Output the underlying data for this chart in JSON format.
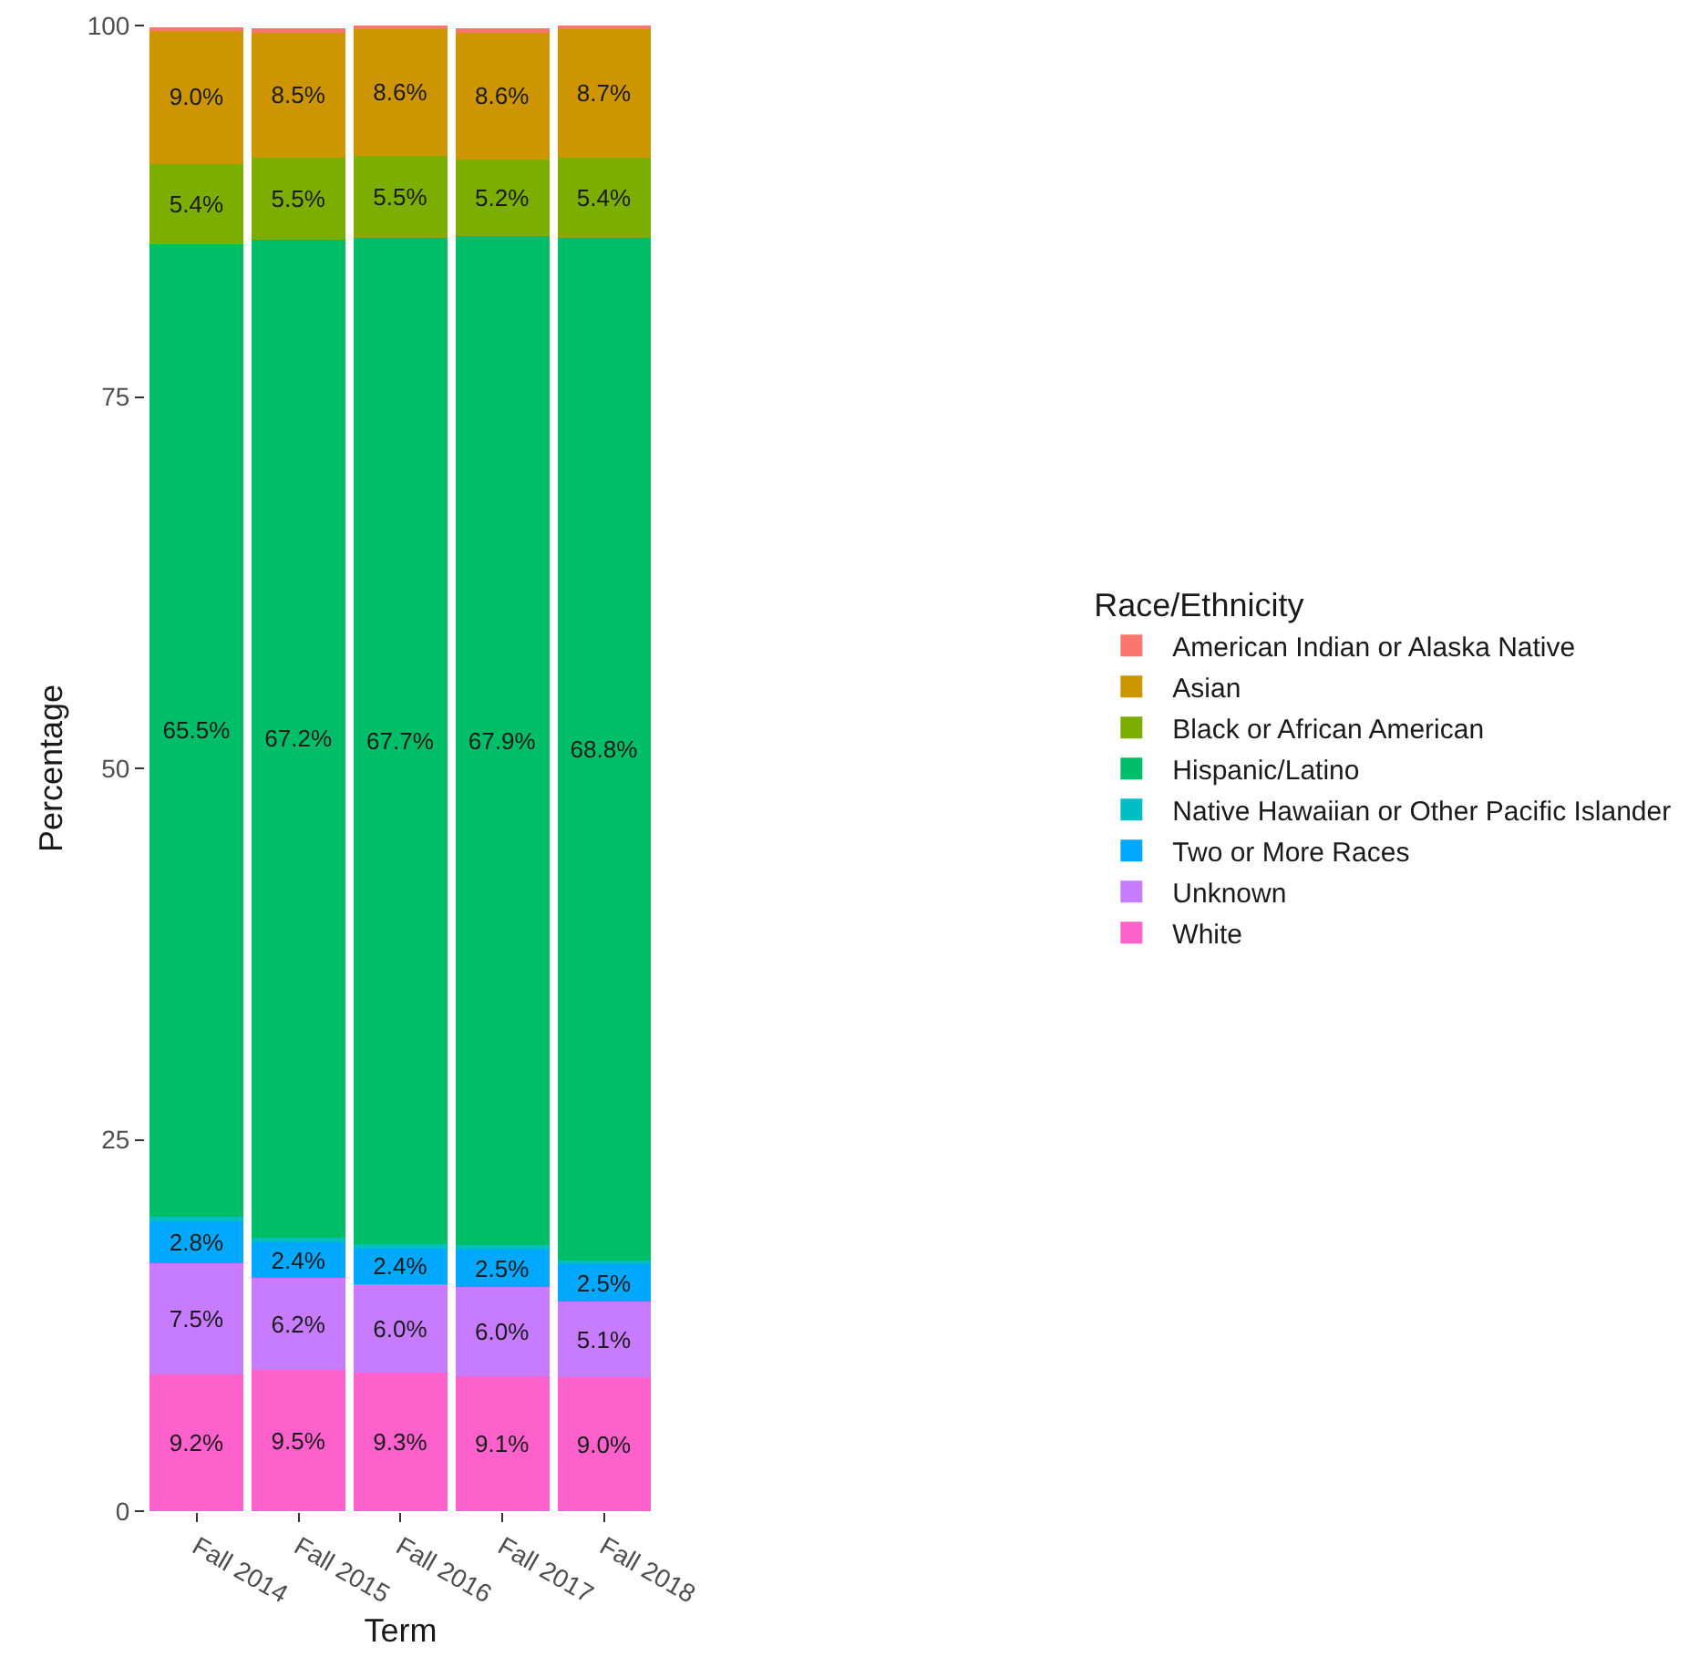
{
  "chart_data": {
    "type": "bar",
    "stacked": true,
    "xlabel": "Term",
    "ylabel": "Percentage",
    "legend_title": "Race/Ethnicity",
    "legend": "right",
    "grid": false,
    "categories": [
      "Fall 2014",
      "Fall 2015",
      "Fall 2016",
      "Fall 2017",
      "Fall 2018"
    ],
    "ylim": [
      0,
      100
    ],
    "yticks": [
      0,
      25,
      50,
      75,
      100
    ],
    "series": [
      {
        "name": "White",
        "color": "#ff61cc",
        "values": [
          9.2,
          9.5,
          9.3,
          9.1,
          9.0
        ],
        "value_labels": [
          "9.2%",
          "9.5%",
          "9.3%",
          "9.1%",
          "9.0%"
        ]
      },
      {
        "name": "Unknown",
        "color": "#c77cff",
        "values": [
          7.5,
          6.2,
          6.0,
          6.0,
          5.1
        ],
        "value_labels": [
          "7.5%",
          "6.2%",
          "6.0%",
          "6.0%",
          "5.1%"
        ]
      },
      {
        "name": "Two or More Races",
        "color": "#00a9ff",
        "values": [
          2.8,
          2.4,
          2.4,
          2.5,
          2.5
        ],
        "value_labels": [
          "2.8%",
          "2.4%",
          "2.4%",
          "2.5%",
          "2.5%"
        ]
      },
      {
        "name": "Native Hawaiian or Other Pacific Islander",
        "color": "#00bfc4",
        "values": [
          0.3,
          0.3,
          0.3,
          0.3,
          0.3
        ]
      },
      {
        "name": "Hispanic/Latino",
        "color": "#00be67",
        "values": [
          65.5,
          67.2,
          67.7,
          67.9,
          68.8
        ],
        "value_labels": [
          "65.5%",
          "67.2%",
          "67.7%",
          "67.9%",
          "68.8%"
        ]
      },
      {
        "name": "Black or African American",
        "color": "#7cae00",
        "values": [
          5.4,
          5.5,
          5.5,
          5.2,
          5.4
        ],
        "value_labels": [
          "5.4%",
          "5.5%",
          "5.5%",
          "5.2%",
          "5.4%"
        ]
      },
      {
        "name": "Asian",
        "color": "#cd9600",
        "values": [
          9.0,
          8.5,
          8.6,
          8.6,
          8.7
        ],
        "value_labels": [
          "9.0%",
          "8.5%",
          "8.6%",
          "8.6%",
          "8.7%"
        ]
      },
      {
        "name": "American Indian or Alaska Native",
        "color": "#f8766d",
        "values": [
          0.2,
          0.2,
          0.2,
          0.2,
          0.2
        ]
      }
    ]
  }
}
